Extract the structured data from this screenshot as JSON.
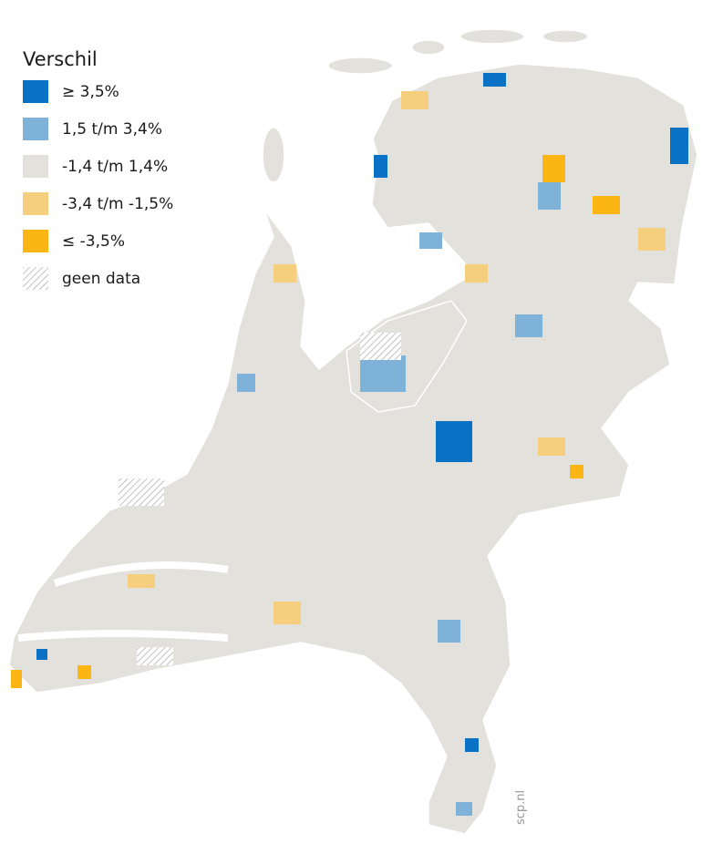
{
  "legend": {
    "title": "Verschil",
    "items": [
      {
        "label": "≥ 3,5%",
        "color": "#0a72c4"
      },
      {
        "label": "1,5 t/m 3,4%",
        "color": "#7eb2d8"
      },
      {
        "label": "-1,4 t/m 1,4%",
        "color": "#e3e1dc"
      },
      {
        "label": "-3,4 t/m -1,5%",
        "color": "#f5cf7e"
      },
      {
        "label": "≤ -3,5%",
        "color": "#fbb616"
      },
      {
        "label": "geen data"
      }
    ]
  },
  "credit": "scp.nl"
}
